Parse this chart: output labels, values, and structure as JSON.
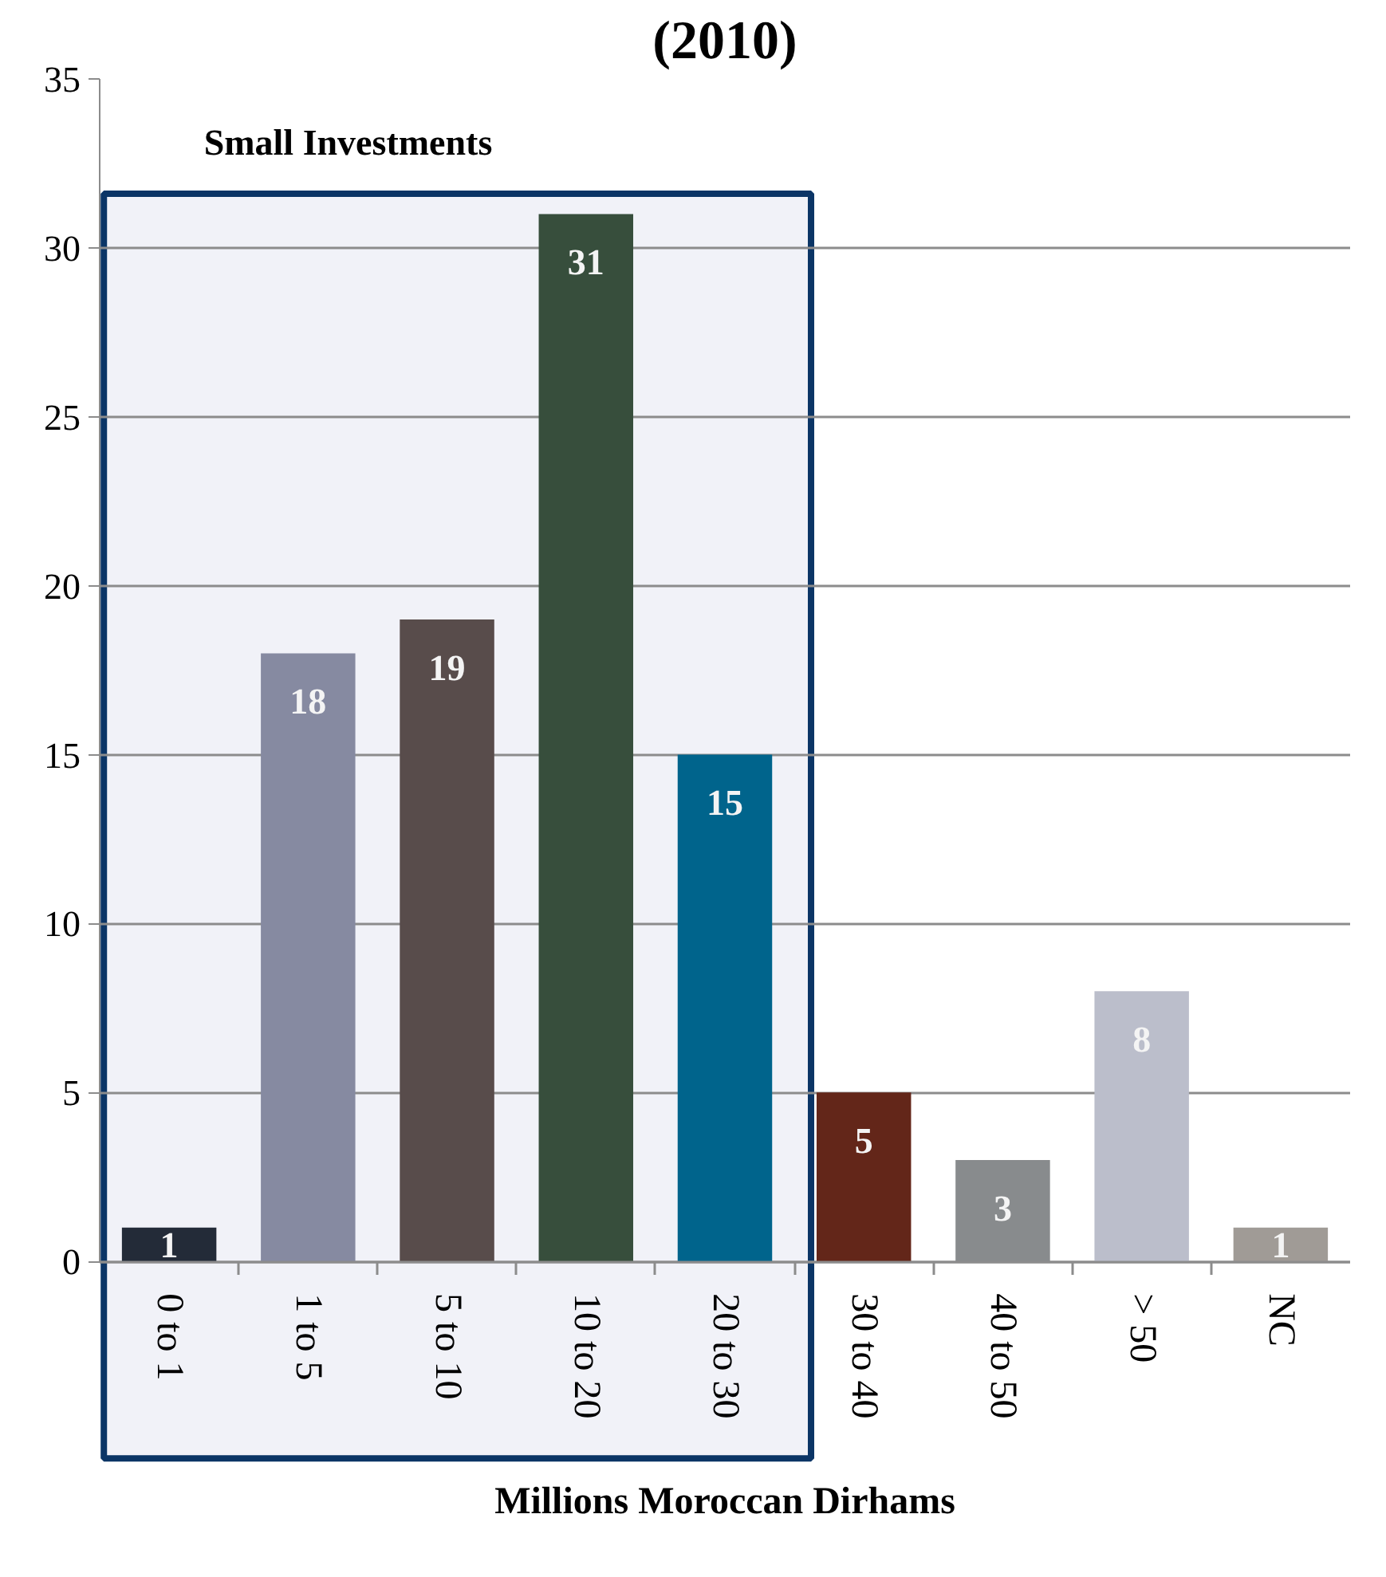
{
  "chart_data": {
    "type": "bar",
    "title": "(2010)",
    "xlabel": "Millions Moroccan Dirhams",
    "categories": [
      "0 to 1",
      "1 to 5",
      "5 to 10",
      "10 to 20",
      "20 to 30",
      "30 to 40",
      "40 to 50",
      "> 50",
      "NC"
    ],
    "values": [
      1,
      18,
      19,
      31,
      15,
      5,
      3,
      8,
      1
    ],
    "colors": [
      "#232b38",
      "#868aa1",
      "#584c4b",
      "#374e3c",
      "#00648c",
      "#632619",
      "#888b8d",
      "#bbbecb",
      "#a09b96"
    ],
    "ylim": [
      0,
      35
    ],
    "yticks": [
      0,
      5,
      10,
      15,
      20,
      25,
      30,
      35
    ],
    "grid": "y",
    "data_labels": true,
    "bands": [
      {
        "axis": "x",
        "from": "0 to 1",
        "to": "20 to 30",
        "label": "Small Investments",
        "color": "#f1f2f8"
      }
    ]
  }
}
